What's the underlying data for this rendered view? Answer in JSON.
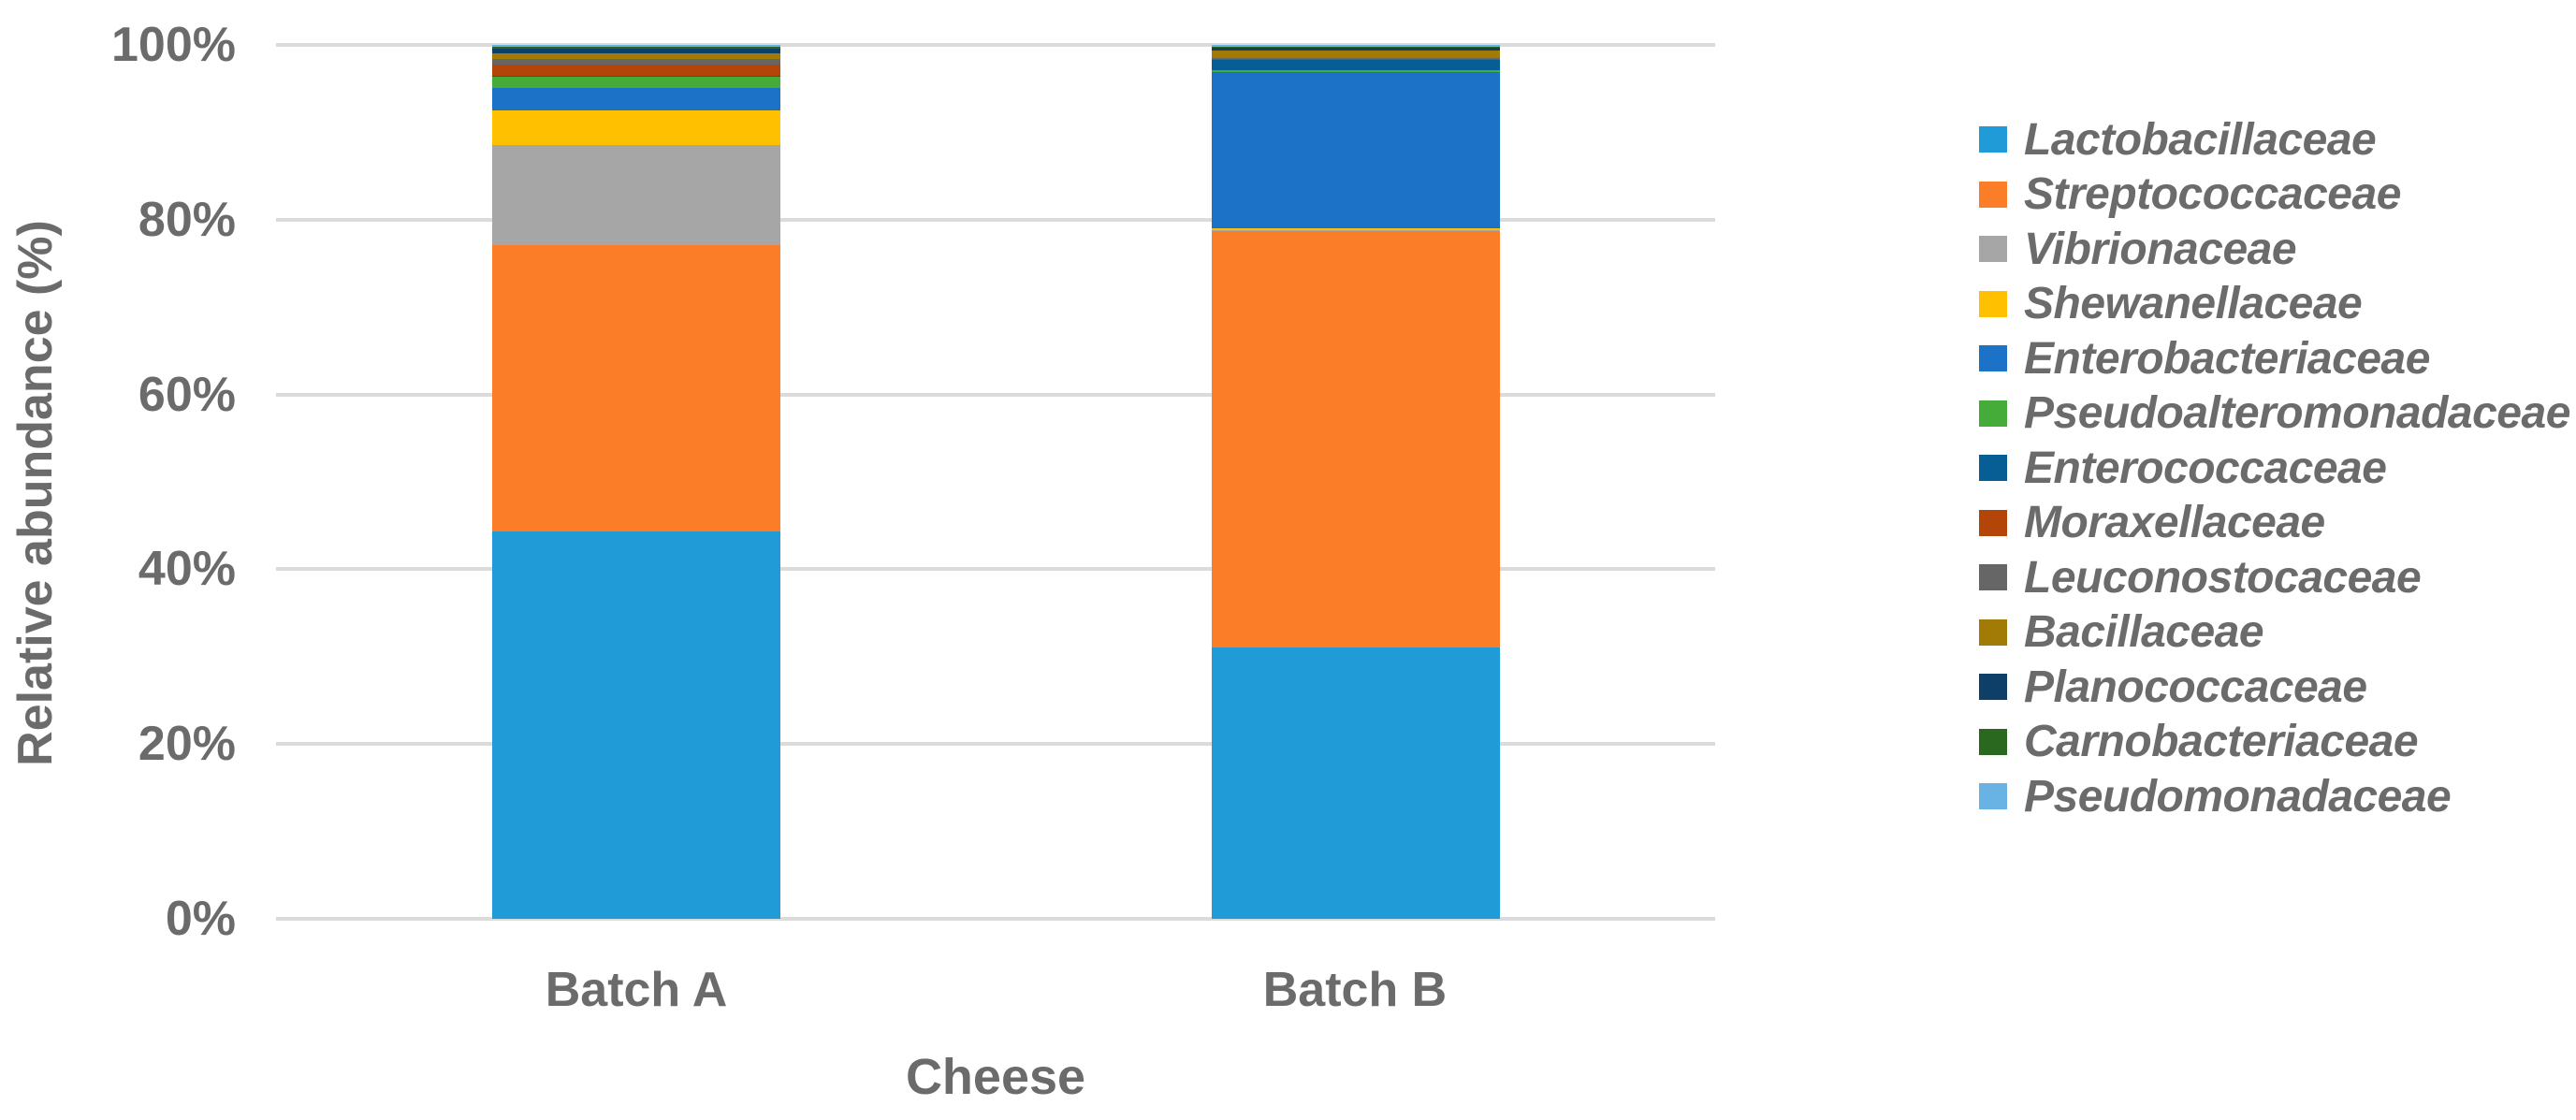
{
  "figure_background": "#FFFFFF",
  "gridline_color": "#DBDBDB",
  "text_color": "#6B6B6B",
  "chart_data": {
    "type": "bar",
    "subtype": "stacked-100-percent",
    "title": "",
    "xlabel": "Cheese",
    "ylabel": "Relative abundance (%)",
    "categories": [
      "Batch A",
      "Batch B"
    ],
    "ylim": [
      0,
      100
    ],
    "ytick_labels": [
      "0%",
      "20%",
      "40%",
      "60%",
      "80%",
      "100%"
    ],
    "grid": true,
    "legend_position": "right",
    "series": [
      {
        "name": "Lactobacillaceae",
        "color": "#209BD8",
        "values": [
          44.3,
          31.0
        ]
      },
      {
        "name": "Streptococcaceae",
        "color": "#FC7D28",
        "values": [
          32.8,
          47.7
        ]
      },
      {
        "name": "Vibrionaceae",
        "color": "#A6A6A6",
        "values": [
          11.4,
          0.1
        ]
      },
      {
        "name": "Shewanellaceae",
        "color": "#FFC000",
        "values": [
          4.0,
          0.2
        ]
      },
      {
        "name": "Enterobacteriaceae",
        "color": "#1C72C6",
        "values": [
          2.6,
          17.9
        ]
      },
      {
        "name": "Pseudoalteromonadaceae",
        "color": "#45AC3A",
        "values": [
          1.3,
          0.2
        ]
      },
      {
        "name": "Enterococcaceae",
        "color": "#065E94",
        "values": [
          0.1,
          1.2
        ]
      },
      {
        "name": "Moraxellaceae",
        "color": "#B24507",
        "values": [
          1.3,
          0.1
        ]
      },
      {
        "name": "Leuconostocaceae",
        "color": "#666666",
        "values": [
          0.6,
          0.1
        ]
      },
      {
        "name": "Bacillaceae",
        "color": "#A27A06",
        "values": [
          0.6,
          0.9
        ]
      },
      {
        "name": "Planococcaceae",
        "color": "#0D3F69",
        "values": [
          0.6,
          0.3
        ]
      },
      {
        "name": "Carnobacteriaceae",
        "color": "#2B681F",
        "values": [
          0.2,
          0.1
        ]
      },
      {
        "name": "Pseudomonadaceae",
        "color": "#69B3E4",
        "values": [
          0.2,
          0.2
        ]
      }
    ]
  }
}
